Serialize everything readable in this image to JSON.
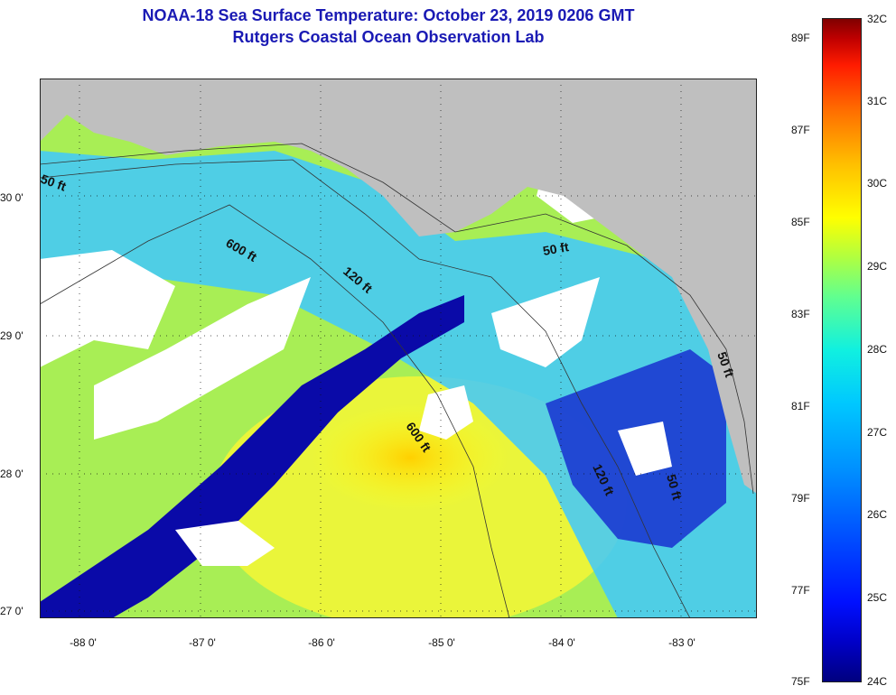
{
  "title": "NOAA-18 Sea Surface Temperature:  October 23, 2019 0206 GMT",
  "subtitle": "Rutgers Coastal Ocean Observation Lab",
  "map": {
    "lat_labels": [
      "30 0'",
      "29 0'",
      "28 0'",
      "27 0'"
    ],
    "lon_labels": [
      "-88 0'",
      "-87 0'",
      "-86 0'",
      "-85 0'",
      "-84 0'",
      "-83 0'"
    ],
    "contour_labels": [
      "50 ft",
      "600 ft",
      "120 ft",
      "50 ft",
      "600 ft",
      "120 ft",
      "50 ft",
      "50 ft"
    ],
    "land_color": "#bfbfbf",
    "cloud_color": "#ffffff"
  },
  "colorbar": {
    "celsius": [
      "32C",
      "31C",
      "30C",
      "29C",
      "28C",
      "27C",
      "26C",
      "25C",
      "24C"
    ],
    "fahrenheit": [
      "89F",
      "87F",
      "85F",
      "83F",
      "81F",
      "79F",
      "77F",
      "75F"
    ]
  }
}
